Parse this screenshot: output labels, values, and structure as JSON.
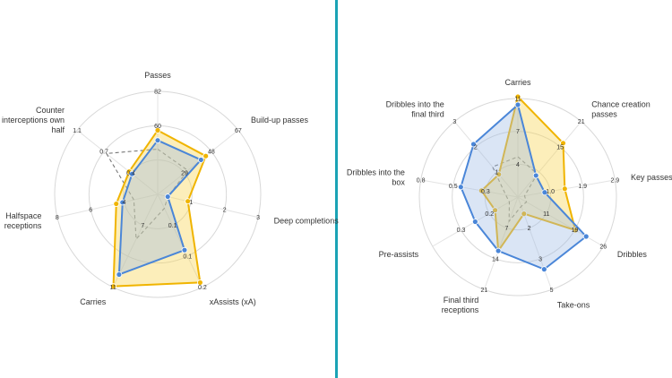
{
  "colors": {
    "divider": "#1aa3b5",
    "yellow_stroke": "#f0b400",
    "yellow_fill": "#f6d14a",
    "blue_stroke": "#4a86d8",
    "blue_fill": "#9fbbe6",
    "dashed": "#777777",
    "grid": "#d8d8d8",
    "spoke": "#e3e3e3"
  },
  "chart_data": [
    {
      "type": "radar",
      "title": "",
      "grid": true,
      "rings": 3,
      "axes": [
        {
          "label": [
            "Passes"
          ],
          "ticks": [
            "",
            "60",
            "82"
          ],
          "max": 82
        },
        {
          "label": [
            "Build-up passes"
          ],
          "ticks": [
            "29",
            "48",
            "67"
          ],
          "max": 67
        },
        {
          "label": [
            "Deep completions"
          ],
          "ticks": [
            "1",
            "2",
            "3"
          ],
          "max": 3
        },
        {
          "label": [
            "xAssists (xA)"
          ],
          "ticks": [
            "0.1",
            "0.1",
            "0.2"
          ],
          "max": 0.2
        },
        {
          "label": [
            "Carries"
          ],
          "ticks": [
            "7",
            "",
            "11"
          ],
          "max": 11
        },
        {
          "label": [
            "Halfspace",
            "receptions"
          ],
          "ticks": [
            "4",
            "6",
            "8"
          ],
          "max": 8
        },
        {
          "label": [
            "Counter",
            "interceptions own",
            "half"
          ],
          "ticks": [
            "0.4",
            "0.7",
            "1.1"
          ],
          "max": 1.1
        }
      ],
      "series": [
        {
          "color": "yellow",
          "values": [
            51,
            40,
            0.9,
            0.19,
            10.9,
            3.3,
            0.39
          ]
        },
        {
          "color": "blue",
          "values": [
            43,
            36,
            0.3,
            0.12,
            9.5,
            2.8,
            0.35
          ]
        }
      ],
      "reference": {
        "style": "dashed",
        "values": [
          36,
          25,
          0.3,
          0.03,
          5.3,
          1.9,
          0.7
        ]
      }
    },
    {
      "type": "radar",
      "title": "",
      "grid": true,
      "rings": 3,
      "axes": [
        {
          "label": [
            "Carries"
          ],
          "ticks": [
            "4",
            "7",
            "11"
          ],
          "max": 11
        },
        {
          "label": [
            "Chance creation",
            "passes"
          ],
          "ticks": [
            "",
            "15",
            "21"
          ],
          "max": 21
        },
        {
          "label": [
            "Key passes"
          ],
          "ticks": [
            "1.0",
            "1.9",
            "2.9"
          ],
          "max": 2.9
        },
        {
          "label": [
            "Dribbles"
          ],
          "ticks": [
            "11",
            "19",
            "26"
          ],
          "max": 26
        },
        {
          "label": [
            "Take-ons"
          ],
          "ticks": [
            "2",
            "3",
            "5"
          ],
          "max": 5
        },
        {
          "label": [
            "Final third",
            "receptions"
          ],
          "ticks": [
            "7",
            "14",
            "21"
          ],
          "max": 21
        },
        {
          "label": [
            "Pre-assists"
          ],
          "ticks": [
            "0.2",
            "0.3",
            ""
          ],
          "max": 0.3
        },
        {
          "label": [
            "Dribbles into the",
            "box"
          ],
          "ticks": [
            "0.3",
            "0.5",
            "0.8"
          ],
          "max": 0.8
        },
        {
          "label": [
            "Dribbles into the",
            "final third"
          ],
          "ticks": [
            "1",
            "2",
            "3"
          ],
          "max": 3
        }
      ],
      "series": [
        {
          "color": "yellow",
          "values": [
            11.2,
            15,
            1.4,
            17.5,
            0.9,
            12.2,
            0.08,
            0.3,
            0.9
          ]
        },
        {
          "color": "blue",
          "values": [
            10.3,
            6,
            0.8,
            20.8,
            3.9,
            12.2,
            0.15,
            0.47,
            2.1
          ]
        }
      ],
      "reference": {
        "style": "dashed",
        "values": [
          4.5,
          6.4,
          0.2,
          2.6,
          0.5,
          5.5,
          0.03,
          0.1,
          1.2
        ]
      }
    }
  ]
}
